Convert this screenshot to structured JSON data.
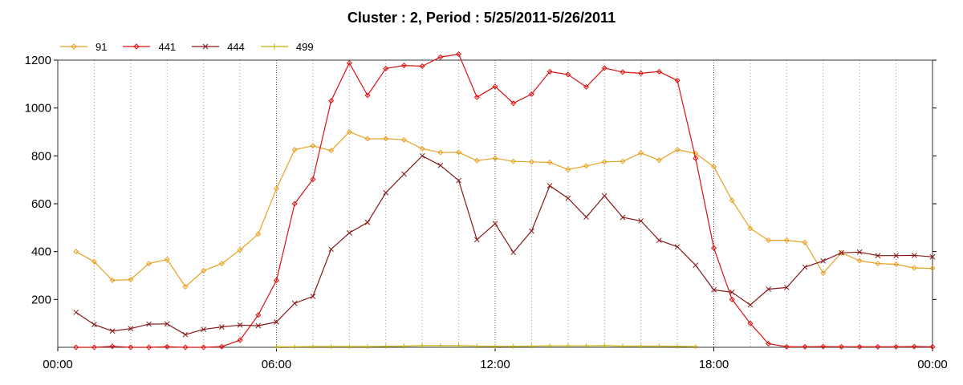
{
  "chart_data": {
    "type": "line",
    "title": "Cluster : 2, Period : 5/25/2011-5/26/2011",
    "xlabel": "",
    "ylabel": "",
    "xlim": [
      0,
      24
    ],
    "ylim": [
      0,
      1200
    ],
    "x_tick_labels": [
      {
        "x": 0,
        "label": "00:00"
      },
      {
        "x": 6,
        "label": "06:00"
      },
      {
        "x": 12,
        "label": "12:00"
      },
      {
        "x": 18,
        "label": "18:00"
      },
      {
        "x": 24,
        "label": "00:00"
      }
    ],
    "y_ticks": [
      200,
      400,
      600,
      800,
      1000,
      1200
    ],
    "grid": "vertical dotted lines every hour",
    "legend_position": "top-left",
    "x": [
      0.5,
      1.0,
      1.5,
      2.0,
      2.5,
      3.0,
      3.5,
      4.0,
      4.5,
      5.0,
      5.5,
      6.0,
      6.5,
      7.0,
      7.5,
      8.0,
      8.5,
      9.0,
      9.5,
      10.0,
      10.5,
      11.0,
      11.5,
      12.0,
      12.5,
      13.0,
      13.5,
      14.0,
      14.5,
      15.0,
      15.5,
      16.0,
      16.5,
      17.0,
      17.5,
      18.0,
      18.5,
      19.0,
      19.5,
      20.0,
      20.5,
      21.0,
      21.5,
      22.0,
      22.5,
      23.0,
      23.5,
      24.0
    ],
    "series": [
      {
        "name": "91",
        "color": "#e8a020",
        "marker": "diamond",
        "values": [
          400,
          358,
          280,
          283,
          350,
          367,
          253,
          320,
          350,
          407,
          473,
          663,
          826,
          842,
          822,
          900,
          871,
          872,
          867,
          830,
          814,
          815,
          780,
          790,
          777,
          775,
          773,
          743,
          758,
          775,
          777,
          812,
          782,
          826,
          810,
          755,
          614,
          497,
          447,
          447,
          438,
          310,
          395,
          362,
          350,
          347,
          332,
          330
        ]
      },
      {
        "name": "441",
        "color": "#dd1010",
        "marker": "diamond",
        "values": [
          0,
          0,
          4,
          0,
          0,
          2,
          0,
          0,
          3,
          30,
          135,
          280,
          600,
          702,
          1030,
          1188,
          1053,
          1165,
          1178,
          1175,
          1213,
          1225,
          1045,
          1090,
          1020,
          1058,
          1152,
          1140,
          1088,
          1167,
          1150,
          1145,
          1152,
          1115,
          790,
          415,
          200,
          100,
          15,
          2,
          2,
          3,
          2,
          2,
          2,
          2,
          3,
          2
        ]
      },
      {
        "name": "444",
        "color": "#881818",
        "marker": "x",
        "values": [
          146,
          95,
          68,
          78,
          97,
          98,
          53,
          75,
          85,
          93,
          90,
          106,
          184,
          213,
          410,
          478,
          522,
          646,
          724,
          800,
          760,
          697,
          450,
          517,
          397,
          486,
          675,
          623,
          544,
          633,
          543,
          528,
          447,
          420,
          343,
          240,
          230,
          177,
          243,
          250,
          335,
          361,
          395,
          398,
          383,
          383,
          384,
          378
        ]
      },
      {
        "name": "499",
        "color": "#c8b000",
        "marker": "plus",
        "values": [
          null,
          null,
          null,
          null,
          null,
          null,
          null,
          null,
          null,
          null,
          null,
          2,
          2,
          3,
          3,
          3,
          3,
          4,
          5,
          7,
          7,
          7,
          5,
          4,
          4,
          5,
          6,
          6,
          6,
          7,
          5,
          5,
          5,
          4,
          3,
          null,
          null,
          null,
          null,
          null,
          null,
          null,
          null,
          null,
          null,
          null,
          null,
          null
        ]
      }
    ]
  }
}
